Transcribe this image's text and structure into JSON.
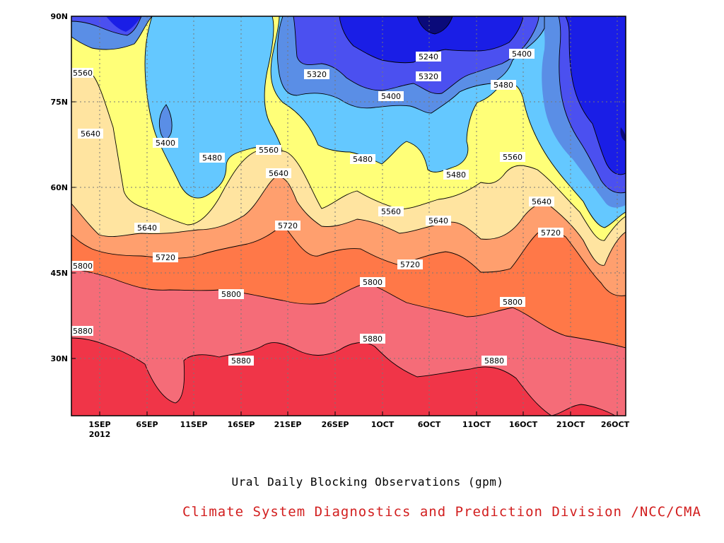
{
  "chart_data": {
    "type": "contour",
    "title": "Ural Daily Blocking Observations (gpm)",
    "credit": "Climate System Diagnostics and Prediction Division /NCC/CMA",
    "credit_color": "#d21e1e",
    "x_axis": {
      "ticks": [
        "1SEP",
        "6SEP",
        "11SEP",
        "16SEP",
        "21SEP",
        "26SEP",
        "1OCT",
        "6OCT",
        "11OCT",
        "16OCT",
        "21OCT",
        "26OCT"
      ],
      "year_label": "2012",
      "range": [
        "2012-08-29",
        "2012-10-27"
      ]
    },
    "y_axis": {
      "ticks": [
        "30N",
        "45N",
        "60N",
        "75N",
        "90N"
      ],
      "range": [
        20,
        90
      ]
    },
    "levels": [
      5240,
      5320,
      5400,
      5480,
      5560,
      5640,
      5720,
      5800,
      5880
    ],
    "fill_colors": {
      "below_5240": "#0a0a7a",
      "5240_5320": "#1a1ee6",
      "5320_5400": "#4b50f0",
      "5400_5480": "#5a8ee6",
      "5480_5560": "#64c8ff",
      "5560_5640": "#ffff78",
      "5640_5720": "#ffe4a0",
      "5720_5800": "#ff9f6e",
      "5800_5880": "#ff7848",
      "5880_5960": "#f56c78",
      "above_5960": "#f03548"
    },
    "contour_labels": [
      {
        "value": "5240"
      },
      {
        "value": "5320"
      },
      {
        "value": "5320"
      },
      {
        "value": "5400"
      },
      {
        "value": "5400"
      },
      {
        "value": "5400"
      },
      {
        "value": "5480"
      },
      {
        "value": "5480"
      },
      {
        "value": "5480"
      },
      {
        "value": "5480"
      },
      {
        "value": "5560"
      },
      {
        "value": "5560"
      },
      {
        "value": "5560"
      },
      {
        "value": "5560"
      },
      {
        "value": "5640"
      },
      {
        "value": "5640"
      },
      {
        "value": "5640"
      },
      {
        "value": "5640"
      },
      {
        "value": "5640"
      },
      {
        "value": "5720"
      },
      {
        "value": "5720"
      },
      {
        "value": "5720"
      },
      {
        "value": "5720"
      },
      {
        "value": "5800"
      },
      {
        "value": "5800"
      },
      {
        "value": "5800"
      },
      {
        "value": "5800"
      },
      {
        "value": "5880"
      },
      {
        "value": "5880"
      },
      {
        "value": "5880"
      },
      {
        "value": "5880"
      }
    ],
    "grid": true
  }
}
